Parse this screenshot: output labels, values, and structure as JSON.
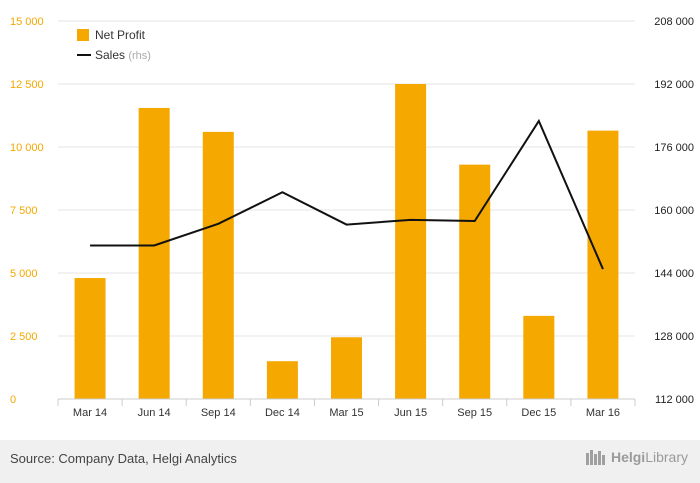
{
  "chart_data": {
    "type": "bar+line",
    "categories": [
      "Mar 14",
      "Jun 14",
      "Sep 14",
      "Dec 14",
      "Mar 15",
      "Jun 15",
      "Sep 15",
      "Dec 15",
      "Mar 16"
    ],
    "series": [
      {
        "name": "Net Profit",
        "type": "bar",
        "axis": "left",
        "color": "#f5a800",
        "values": [
          4800,
          11550,
          10600,
          1500,
          2450,
          12500,
          9300,
          3300,
          10650
        ]
      },
      {
        "name": "Sales",
        "suffix": "(rhs)",
        "type": "line",
        "axis": "right",
        "color": "#111111",
        "values": [
          151000,
          151000,
          156500,
          164500,
          156300,
          157500,
          157200,
          182600,
          145000
        ]
      }
    ],
    "y_left": {
      "range": [
        0,
        15000
      ],
      "ticks": [
        0,
        2500,
        5000,
        7500,
        10000,
        12500,
        15000
      ],
      "tick_labels": [
        "0",
        "2 500",
        "5 000",
        "7 500",
        "10 000",
        "12 500",
        "15 000"
      ]
    },
    "y_right": {
      "range": [
        112000,
        208000
      ],
      "ticks": [
        112000,
        128000,
        144000,
        160000,
        176000,
        192000,
        208000
      ],
      "tick_labels": [
        "112 000",
        "128 000",
        "144 000",
        "160 000",
        "176 000",
        "192 000",
        "208 000"
      ]
    },
    "legend": {
      "position": "top-left"
    },
    "grid": true,
    "title": ""
  },
  "footer": {
    "source": "Source: Company Data, Helgi Analytics",
    "brand_part1": "Helgi",
    "brand_part2": "Library"
  }
}
